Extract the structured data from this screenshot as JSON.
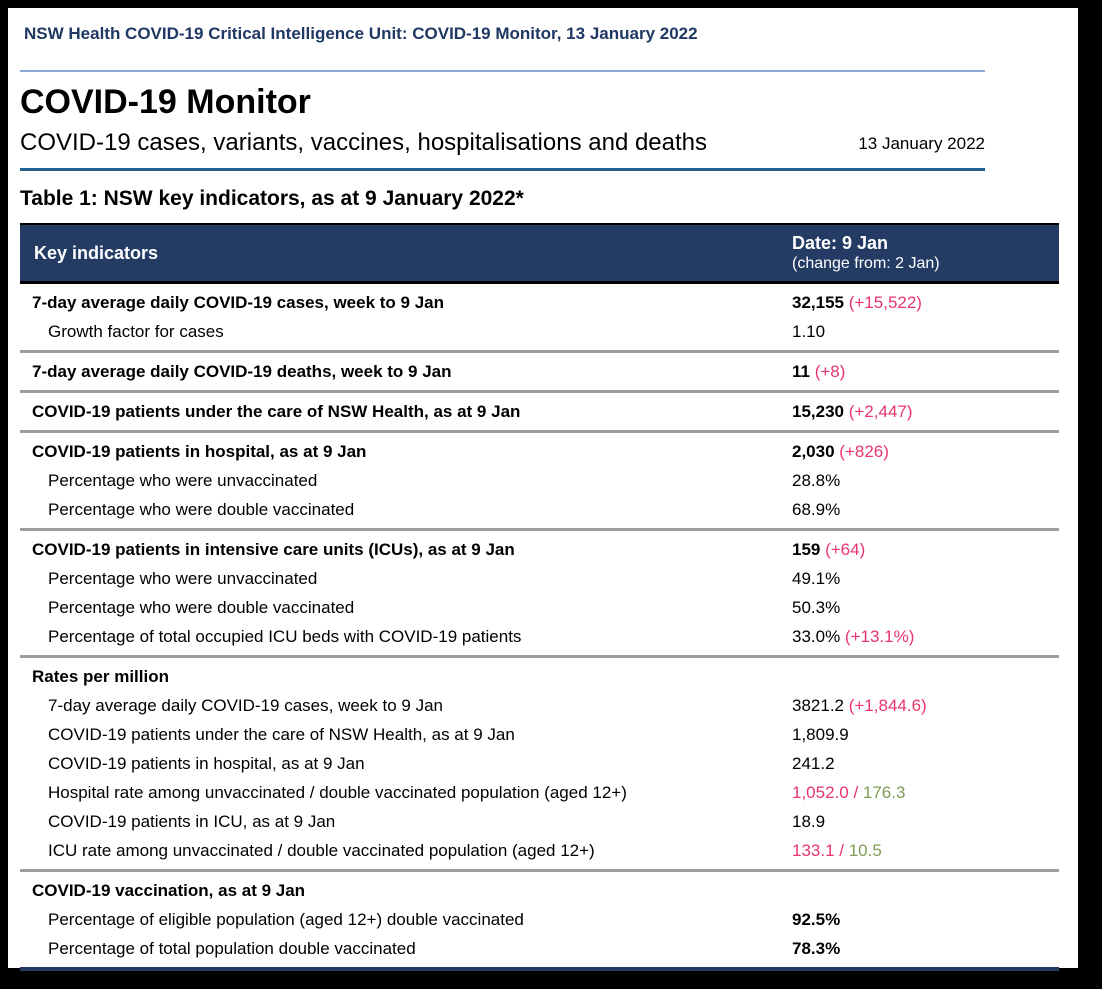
{
  "colors": {
    "navy": "#243c64",
    "header-text": "#1f3864",
    "red": "#e9356b",
    "green": "#7e9d54",
    "rule-light": "#8ea9db",
    "rule-dark": "#20618f",
    "divider": "#9e9e9e"
  },
  "doc": {
    "header_line": "NSW Health COVID-19 Critical Intelligence Unit: COVID-19 Monitor, 13 January 2022",
    "title": "COVID-19 Monitor",
    "subtitle": "COVID-19 cases, variants, vaccines, hospitalisations and deaths",
    "date": "13 January 2022",
    "table_title": "Table 1: NSW key indicators, as at 9 January 2022*"
  },
  "table": {
    "header": {
      "indicators": "Key indicators",
      "date_line": "Date: 9 Jan",
      "change_line": "(change from: 2 Jan)"
    },
    "sections": [
      {
        "rows": [
          {
            "label": "7-day average daily COVID-19 cases, week to 9 Jan",
            "bold": true,
            "indent": false,
            "value": [
              {
                "text": "32,155",
                "style": "bold"
              },
              {
                "text": " (+15,522)",
                "style": "red"
              }
            ]
          },
          {
            "label": "Growth factor for cases",
            "bold": false,
            "indent": true,
            "value": [
              {
                "text": "1.10",
                "style": "normal"
              }
            ]
          }
        ]
      },
      {
        "rows": [
          {
            "label": "7-day average daily COVID-19 deaths, week to 9 Jan",
            "bold": true,
            "indent": false,
            "value": [
              {
                "text": "11",
                "style": "bold"
              },
              {
                "text": " (+8)",
                "style": "red"
              }
            ]
          }
        ]
      },
      {
        "rows": [
          {
            "label": "COVID-19 patients under the care of NSW Health, as at 9 Jan",
            "bold": true,
            "indent": false,
            "value": [
              {
                "text": "15,230",
                "style": "bold"
              },
              {
                "text": " (+2,447)",
                "style": "red"
              }
            ]
          }
        ]
      },
      {
        "rows": [
          {
            "label": "COVID-19 patients in hospital, as at 9 Jan",
            "bold": true,
            "indent": false,
            "value": [
              {
                "text": "2,030",
                "style": "bold"
              },
              {
                "text": " (+826)",
                "style": "red"
              }
            ]
          },
          {
            "label": "Percentage who were unvaccinated",
            "bold": false,
            "indent": true,
            "value": [
              {
                "text": "28.8%",
                "style": "normal"
              }
            ]
          },
          {
            "label": "Percentage who were double vaccinated",
            "bold": false,
            "indent": true,
            "value": [
              {
                "text": "68.9%",
                "style": "normal"
              }
            ]
          }
        ]
      },
      {
        "rows": [
          {
            "label": "COVID-19 patients in intensive care units (ICUs), as at 9 Jan",
            "bold": true,
            "indent": false,
            "value": [
              {
                "text": "159",
                "style": "bold"
              },
              {
                "text": " (+64)",
                "style": "red"
              }
            ]
          },
          {
            "label": "Percentage who were unvaccinated",
            "bold": false,
            "indent": true,
            "value": [
              {
                "text": "49.1%",
                "style": "normal"
              }
            ]
          },
          {
            "label": "Percentage who were double vaccinated",
            "bold": false,
            "indent": true,
            "value": [
              {
                "text": "50.3%",
                "style": "normal"
              }
            ]
          },
          {
            "label": "Percentage of total occupied ICU beds with COVID-19 patients",
            "bold": false,
            "indent": true,
            "value": [
              {
                "text": "33.0%",
                "style": "normal"
              },
              {
                "text": " (+13.1%)",
                "style": "red"
              }
            ]
          }
        ]
      },
      {
        "rows": [
          {
            "label": "Rates per million",
            "bold": true,
            "indent": false,
            "value": []
          },
          {
            "label": "7-day average daily COVID-19 cases, week to 9 Jan",
            "bold": false,
            "indent": true,
            "value": [
              {
                "text": "3821.2",
                "style": "normal"
              },
              {
                "text": " (+1,844.6)",
                "style": "red"
              }
            ]
          },
          {
            "label": "COVID-19 patients under the care of NSW Health, as at 9 Jan",
            "bold": false,
            "indent": true,
            "value": [
              {
                "text": "1,809.9",
                "style": "normal"
              }
            ]
          },
          {
            "label": "COVID-19 patients in hospital, as at 9 Jan",
            "bold": false,
            "indent": true,
            "value": [
              {
                "text": "241.2",
                "style": "normal"
              }
            ]
          },
          {
            "label": "Hospital rate among unvaccinated / double vaccinated population (aged 12+)",
            "bold": false,
            "indent": true,
            "value": [
              {
                "text": "1,052.0 /",
                "style": "red"
              },
              {
                "text": " 176.3",
                "style": "green"
              }
            ]
          },
          {
            "label": "COVID-19 patients in ICU, as at 9 Jan",
            "bold": false,
            "indent": true,
            "value": [
              {
                "text": "18.9",
                "style": "normal"
              }
            ]
          },
          {
            "label": "ICU rate among unvaccinated / double vaccinated population (aged 12+)",
            "bold": false,
            "indent": true,
            "value": [
              {
                "text": "133.1 /",
                "style": "red"
              },
              {
                "text": " 10.5",
                "style": "green"
              }
            ]
          }
        ]
      },
      {
        "rows": [
          {
            "label": "COVID-19 vaccination, as at 9 Jan",
            "bold": true,
            "indent": false,
            "value": []
          },
          {
            "label": "Percentage of eligible population (aged 12+) double vaccinated",
            "bold": false,
            "indent": true,
            "value": [
              {
                "text": "92.5%",
                "style": "bold"
              }
            ]
          },
          {
            "label": "Percentage of total population double vaccinated",
            "bold": false,
            "indent": true,
            "value": [
              {
                "text": "78.3%",
                "style": "bold"
              }
            ]
          }
        ]
      }
    ]
  }
}
